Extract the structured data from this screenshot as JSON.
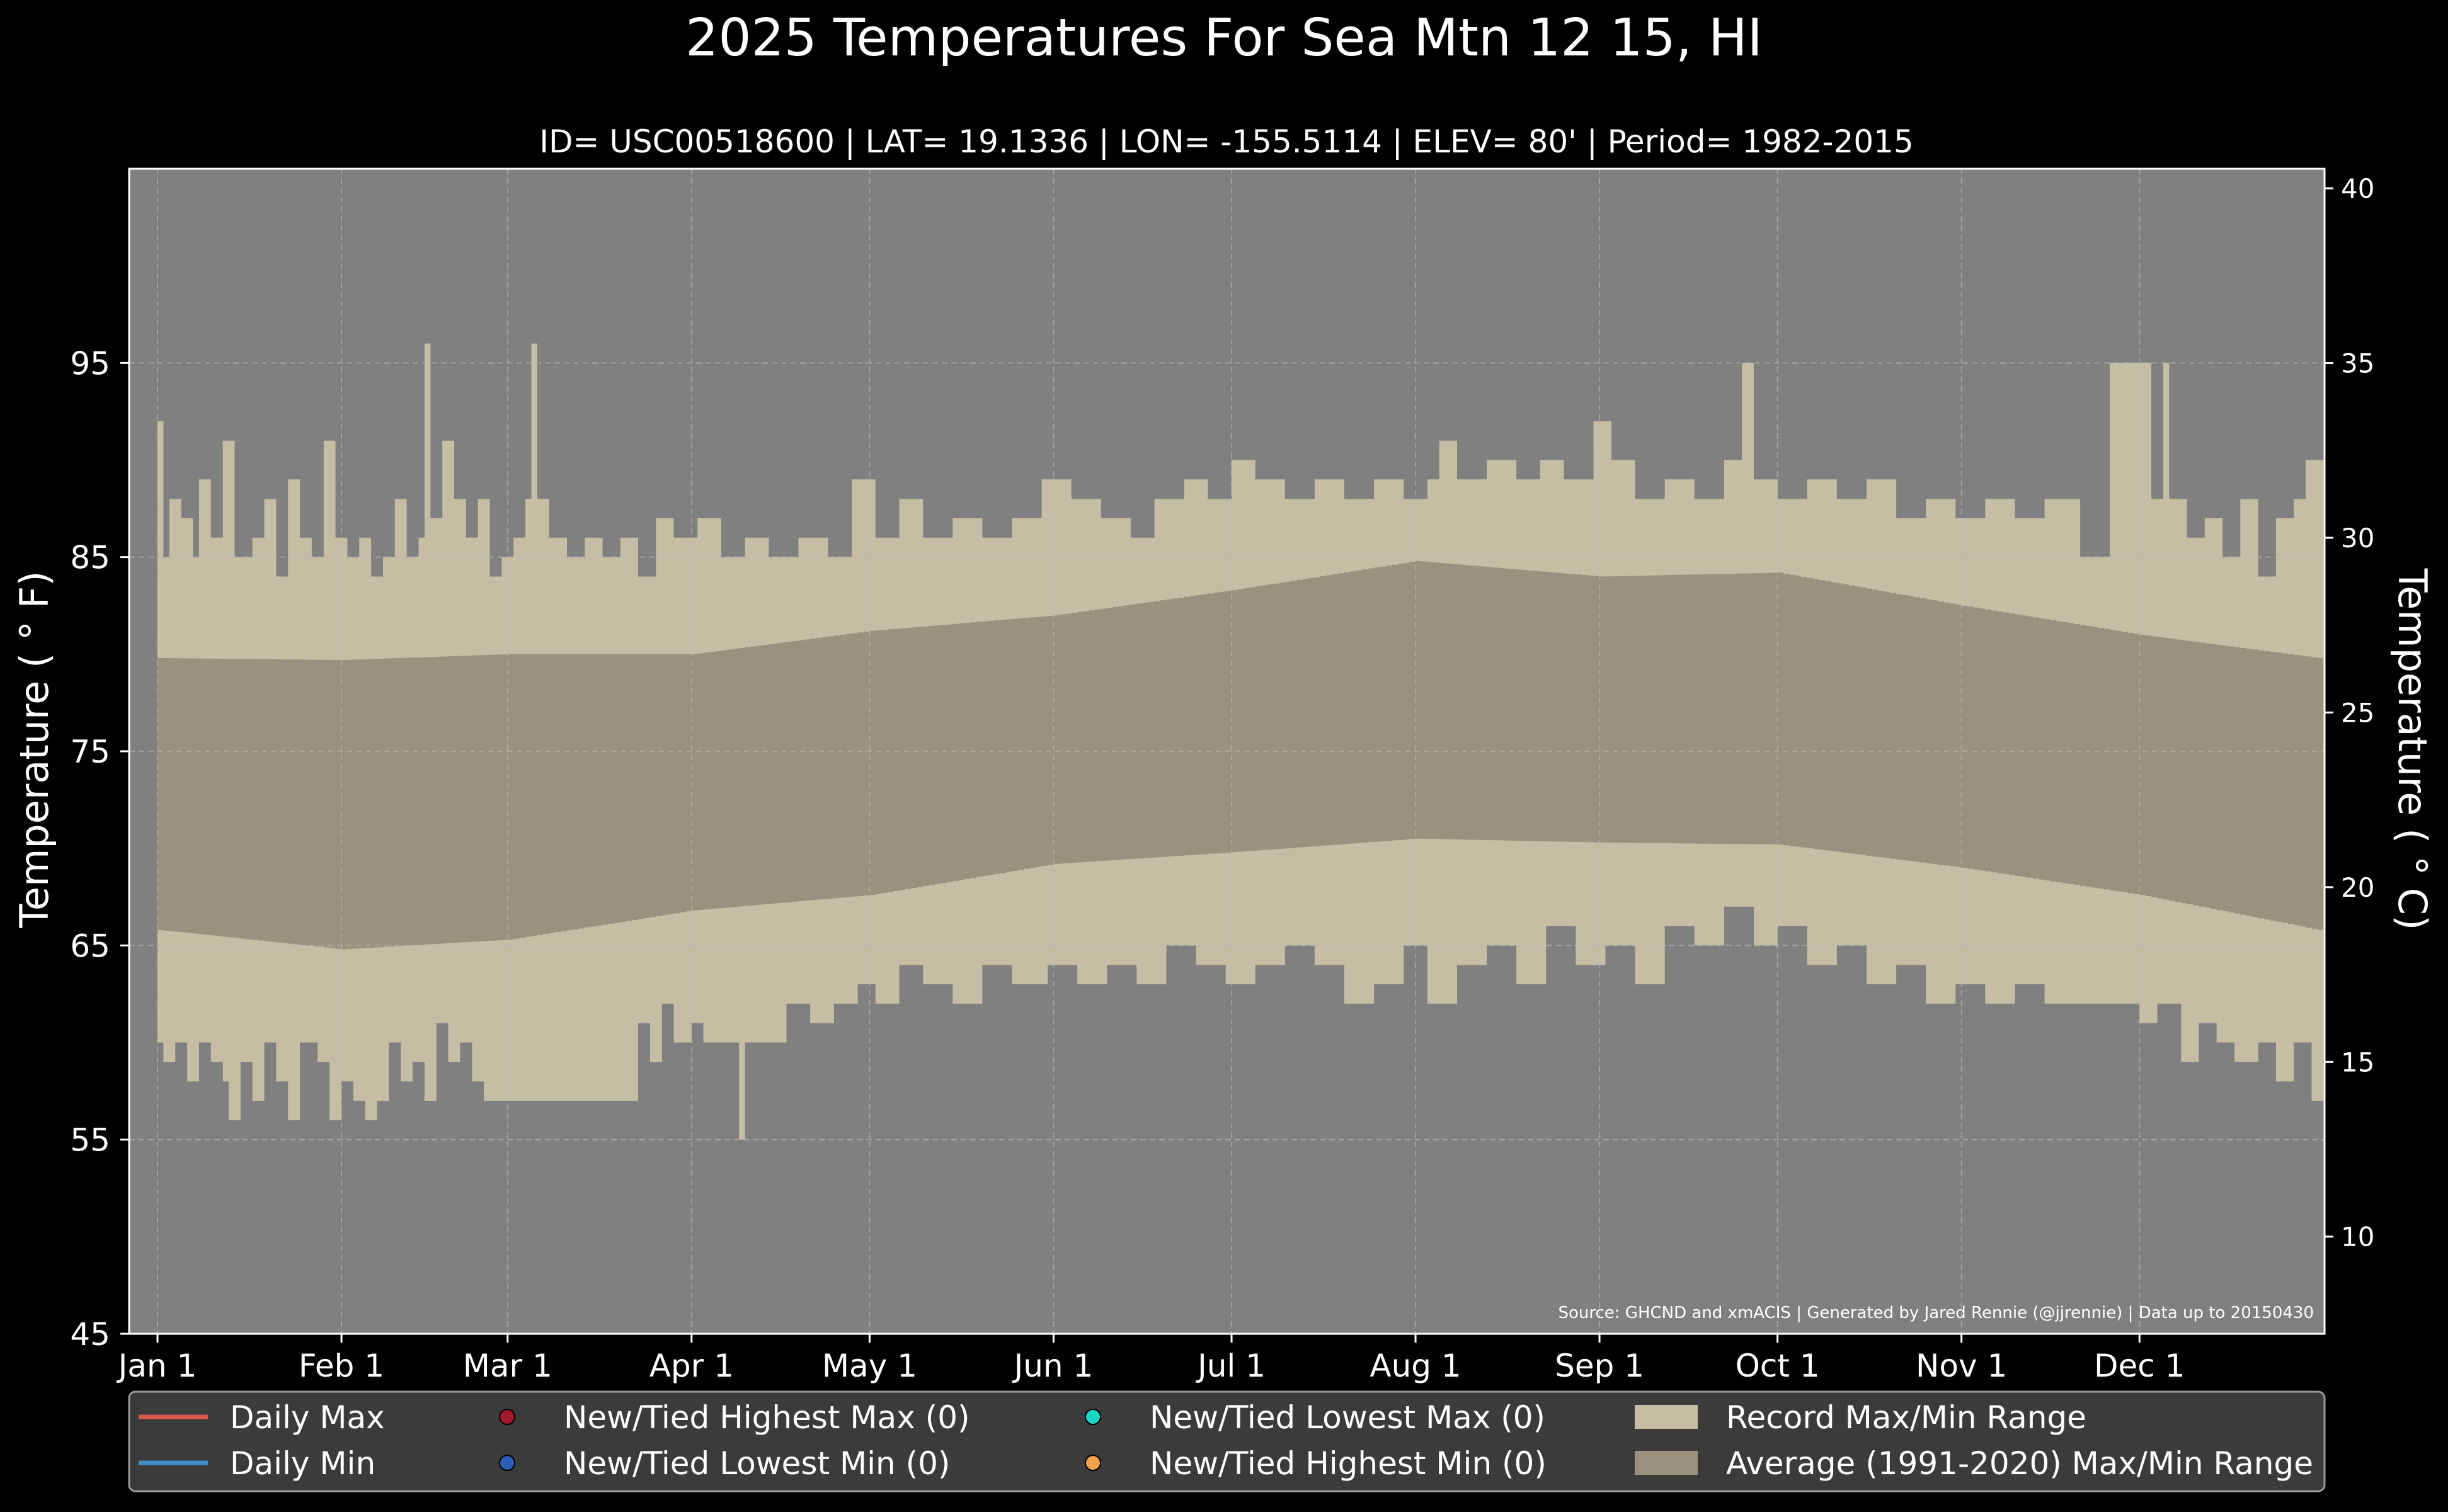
{
  "chart_data": {
    "type": "area",
    "title": "2025 Temperatures For Sea Mtn 12 15, HI",
    "subtitle": "ID= USC00518600 | LAT= 19.1336 | LON= -155.5114 | ELEV= 80' | Period= 1982-2015",
    "ylabel": "Temperature ($^\\circ$F)",
    "ylabel_display": "Temperature ( ° F)",
    "y2label_display": "Temperature ( ° C)",
    "ylim": [
      45,
      105
    ],
    "y2lim": [
      7.22,
      40.56
    ],
    "yticks": [
      45,
      55,
      65,
      75,
      85,
      95
    ],
    "y2ticks": [
      10,
      15,
      20,
      25,
      30,
      35,
      40
    ],
    "xlim_days": [
      0,
      365
    ],
    "month_ticks": [
      {
        "label": "Jan 1",
        "date": "2025-01-01"
      },
      {
        "label": "Feb 1",
        "date": "2025-02-01"
      },
      {
        "label": "Mar 1",
        "date": "2025-03-01"
      },
      {
        "label": "Apr 1",
        "date": "2025-04-01"
      },
      {
        "label": "May 1",
        "date": "2025-05-01"
      },
      {
        "label": "Jun 1",
        "date": "2025-06-01"
      },
      {
        "label": "Jul 1",
        "date": "2025-07-01"
      },
      {
        "label": "Aug 1",
        "date": "2025-08-01"
      },
      {
        "label": "Sep 1",
        "date": "2025-09-01"
      },
      {
        "label": "Oct 1",
        "date": "2025-10-01"
      },
      {
        "label": "Nov 1",
        "date": "2025-11-01"
      },
      {
        "label": "Dec 1",
        "date": "2025-12-01"
      }
    ],
    "grid": true,
    "legend_position": "bottom",
    "source_note": "Source: GHCND and xmACIS | Generated by Jared Rennie (@jjrennie) | Data up to 20150430",
    "series": [
      {
        "name": "Record Max/Min Range",
        "kind": "band",
        "color": "#c5bea5",
        "upper_knots": [
          [
            "2025-01-01",
            92
          ],
          [
            "2025-01-02",
            85
          ],
          [
            "2025-01-03",
            88
          ],
          [
            "2025-01-05",
            87
          ],
          [
            "2025-01-07",
            85
          ],
          [
            "2025-01-08",
            89
          ],
          [
            "2025-01-10",
            86
          ],
          [
            "2025-01-12",
            91
          ],
          [
            "2025-01-14",
            85
          ],
          [
            "2025-01-17",
            86
          ],
          [
            "2025-01-19",
            88
          ],
          [
            "2025-01-21",
            84
          ],
          [
            "2025-01-23",
            89
          ],
          [
            "2025-01-25",
            86
          ],
          [
            "2025-01-27",
            85
          ],
          [
            "2025-01-29",
            91
          ],
          [
            "2025-01-31",
            86
          ],
          [
            "2025-02-02",
            85
          ],
          [
            "2025-02-04",
            86
          ],
          [
            "2025-02-06",
            84
          ],
          [
            "2025-02-08",
            85
          ],
          [
            "2025-02-10",
            88
          ],
          [
            "2025-02-12",
            85
          ],
          [
            "2025-02-14",
            86
          ],
          [
            "2025-02-15",
            96
          ],
          [
            "2025-02-16",
            87
          ],
          [
            "2025-02-18",
            91
          ],
          [
            "2025-02-20",
            88
          ],
          [
            "2025-02-22",
            86
          ],
          [
            "2025-02-24",
            88
          ],
          [
            "2025-02-26",
            84
          ],
          [
            "2025-02-28",
            85
          ],
          [
            "2025-03-02",
            86
          ],
          [
            "2025-03-04",
            88
          ],
          [
            "2025-03-05",
            96
          ],
          [
            "2025-03-06",
            88
          ],
          [
            "2025-03-08",
            86
          ],
          [
            "2025-03-11",
            85
          ],
          [
            "2025-03-14",
            86
          ],
          [
            "2025-03-17",
            85
          ],
          [
            "2025-03-20",
            86
          ],
          [
            "2025-03-23",
            84
          ],
          [
            "2025-03-26",
            87
          ],
          [
            "2025-03-29",
            86
          ],
          [
            "2025-04-02",
            87
          ],
          [
            "2025-04-06",
            85
          ],
          [
            "2025-04-10",
            86
          ],
          [
            "2025-04-14",
            85
          ],
          [
            "2025-04-19",
            86
          ],
          [
            "2025-04-24",
            85
          ],
          [
            "2025-04-28",
            89
          ],
          [
            "2025-05-02",
            86
          ],
          [
            "2025-05-06",
            88
          ],
          [
            "2025-05-10",
            86
          ],
          [
            "2025-05-15",
            87
          ],
          [
            "2025-05-20",
            86
          ],
          [
            "2025-05-25",
            87
          ],
          [
            "2025-05-30",
            89
          ],
          [
            "2025-06-04",
            88
          ],
          [
            "2025-06-09",
            87
          ],
          [
            "2025-06-14",
            86
          ],
          [
            "2025-06-18",
            88
          ],
          [
            "2025-06-23",
            89
          ],
          [
            "2025-06-27",
            88
          ],
          [
            "2025-07-01",
            90
          ],
          [
            "2025-07-05",
            89
          ],
          [
            "2025-07-10",
            88
          ],
          [
            "2025-07-15",
            89
          ],
          [
            "2025-07-20",
            88
          ],
          [
            "2025-07-25",
            89
          ],
          [
            "2025-07-30",
            88
          ],
          [
            "2025-08-03",
            89
          ],
          [
            "2025-08-05",
            91
          ],
          [
            "2025-08-08",
            89
          ],
          [
            "2025-08-13",
            90
          ],
          [
            "2025-08-18",
            89
          ],
          [
            "2025-08-22",
            90
          ],
          [
            "2025-08-26",
            89
          ],
          [
            "2025-08-31",
            92
          ],
          [
            "2025-09-03",
            90
          ],
          [
            "2025-09-07",
            88
          ],
          [
            "2025-09-12",
            89
          ],
          [
            "2025-09-17",
            88
          ],
          [
            "2025-09-22",
            90
          ],
          [
            "2025-09-25",
            95
          ],
          [
            "2025-09-27",
            89
          ],
          [
            "2025-10-01",
            88
          ],
          [
            "2025-10-06",
            89
          ],
          [
            "2025-10-11",
            88
          ],
          [
            "2025-10-16",
            89
          ],
          [
            "2025-10-21",
            87
          ],
          [
            "2025-10-26",
            88
          ],
          [
            "2025-10-31",
            87
          ],
          [
            "2025-11-05",
            88
          ],
          [
            "2025-11-10",
            87
          ],
          [
            "2025-11-15",
            88
          ],
          [
            "2025-11-20",
            88
          ],
          [
            "2025-11-21",
            85
          ],
          [
            "2025-11-25",
            85
          ],
          [
            "2025-11-26",
            95
          ],
          [
            "2025-12-01",
            95
          ],
          [
            "2025-12-03",
            88
          ],
          [
            "2025-12-05",
            95
          ],
          [
            "2025-12-06",
            88
          ],
          [
            "2025-12-09",
            86
          ],
          [
            "2025-12-12",
            87
          ],
          [
            "2025-12-15",
            85
          ],
          [
            "2025-12-18",
            88
          ],
          [
            "2025-12-21",
            84
          ],
          [
            "2025-12-24",
            87
          ],
          [
            "2025-12-27",
            88
          ],
          [
            "2025-12-29",
            90
          ],
          [
            "2025-12-31",
            90
          ]
        ],
        "lower_knots": [
          [
            "2025-01-01",
            60
          ],
          [
            "2025-01-02",
            59
          ],
          [
            "2025-01-04",
            60
          ],
          [
            "2025-01-06",
            58
          ],
          [
            "2025-01-08",
            60
          ],
          [
            "2025-01-10",
            59
          ],
          [
            "2025-01-12",
            58
          ],
          [
            "2025-01-13",
            56
          ],
          [
            "2025-01-15",
            59
          ],
          [
            "2025-01-17",
            57
          ],
          [
            "2025-01-19",
            60
          ],
          [
            "2025-01-21",
            58
          ],
          [
            "2025-01-23",
            56
          ],
          [
            "2025-01-25",
            60
          ],
          [
            "2025-01-28",
            59
          ],
          [
            "2025-01-30",
            56
          ],
          [
            "2025-02-01",
            58
          ],
          [
            "2025-02-03",
            57
          ],
          [
            "2025-02-05",
            56
          ],
          [
            "2025-02-07",
            57
          ],
          [
            "2025-02-09",
            60
          ],
          [
            "2025-02-11",
            58
          ],
          [
            "2025-02-13",
            59
          ],
          [
            "2025-02-15",
            57
          ],
          [
            "2025-02-17",
            61
          ],
          [
            "2025-02-19",
            59
          ],
          [
            "2025-02-21",
            60
          ],
          [
            "2025-02-23",
            58
          ],
          [
            "2025-02-25",
            57
          ],
          [
            "2025-02-28",
            57
          ],
          [
            "2025-03-05",
            57
          ],
          [
            "2025-03-10",
            57
          ],
          [
            "2025-03-15",
            57
          ],
          [
            "2025-03-21",
            57
          ],
          [
            "2025-03-23",
            61
          ],
          [
            "2025-03-25",
            59
          ],
          [
            "2025-03-27",
            62
          ],
          [
            "2025-03-29",
            60
          ],
          [
            "2025-04-01",
            61
          ],
          [
            "2025-04-03",
            60
          ],
          [
            "2025-04-06",
            60
          ],
          [
            "2025-04-08",
            60
          ],
          [
            "2025-04-09",
            55
          ],
          [
            "2025-04-10",
            60
          ],
          [
            "2025-04-13",
            60
          ],
          [
            "2025-04-17",
            62
          ],
          [
            "2025-04-21",
            61
          ],
          [
            "2025-04-25",
            62
          ],
          [
            "2025-04-29",
            63
          ],
          [
            "2025-05-02",
            62
          ],
          [
            "2025-05-06",
            64
          ],
          [
            "2025-05-10",
            63
          ],
          [
            "2025-05-15",
            62
          ],
          [
            "2025-05-20",
            64
          ],
          [
            "2025-05-25",
            63
          ],
          [
            "2025-05-31",
            64
          ],
          [
            "2025-06-05",
            63
          ],
          [
            "2025-06-10",
            64
          ],
          [
            "2025-06-15",
            63
          ],
          [
            "2025-06-20",
            65
          ],
          [
            "2025-06-25",
            64
          ],
          [
            "2025-06-30",
            63
          ],
          [
            "2025-07-05",
            64
          ],
          [
            "2025-07-10",
            65
          ],
          [
            "2025-07-15",
            64
          ],
          [
            "2025-07-20",
            62
          ],
          [
            "2025-07-25",
            63
          ],
          [
            "2025-07-30",
            65
          ],
          [
            "2025-08-03",
            62
          ],
          [
            "2025-08-08",
            64
          ],
          [
            "2025-08-13",
            65
          ],
          [
            "2025-08-18",
            63
          ],
          [
            "2025-08-23",
            66
          ],
          [
            "2025-08-28",
            64
          ],
          [
            "2025-09-02",
            65
          ],
          [
            "2025-09-07",
            63
          ],
          [
            "2025-09-12",
            66
          ],
          [
            "2025-09-17",
            65
          ],
          [
            "2025-09-22",
            67
          ],
          [
            "2025-09-27",
            65
          ],
          [
            "2025-10-01",
            66
          ],
          [
            "2025-10-06",
            64
          ],
          [
            "2025-10-11",
            65
          ],
          [
            "2025-10-16",
            63
          ],
          [
            "2025-10-21",
            64
          ],
          [
            "2025-10-26",
            62
          ],
          [
            "2025-10-31",
            63
          ],
          [
            "2025-11-05",
            62
          ],
          [
            "2025-11-10",
            63
          ],
          [
            "2025-11-15",
            62
          ],
          [
            "2025-11-20",
            62
          ],
          [
            "2025-11-25",
            62
          ],
          [
            "2025-12-01",
            61
          ],
          [
            "2025-12-04",
            62
          ],
          [
            "2025-12-08",
            59
          ],
          [
            "2025-12-11",
            61
          ],
          [
            "2025-12-14",
            60
          ],
          [
            "2025-12-17",
            59
          ],
          [
            "2025-12-21",
            60
          ],
          [
            "2025-12-24",
            58
          ],
          [
            "2025-12-27",
            60
          ],
          [
            "2025-12-30",
            57
          ],
          [
            "2025-12-31",
            57
          ]
        ]
      },
      {
        "name": "Average (1991-2020) Max/Min Range",
        "kind": "band",
        "color": "#9a917e",
        "upper": [
          [
            "2025-01-01",
            79.8
          ],
          [
            "2025-02-01",
            79.7
          ],
          [
            "2025-03-01",
            80.0
          ],
          [
            "2025-04-01",
            80.0
          ],
          [
            "2025-05-01",
            81.2
          ],
          [
            "2025-06-01",
            82.0
          ],
          [
            "2025-07-01",
            83.3
          ],
          [
            "2025-08-01",
            84.8
          ],
          [
            "2025-09-01",
            84.0
          ],
          [
            "2025-10-01",
            84.2
          ],
          [
            "2025-11-01",
            82.5
          ],
          [
            "2025-12-01",
            81.0
          ],
          [
            "2025-12-31",
            79.8
          ]
        ],
        "lower": [
          [
            "2025-01-01",
            65.8
          ],
          [
            "2025-02-01",
            64.8
          ],
          [
            "2025-03-01",
            65.3
          ],
          [
            "2025-04-01",
            66.8
          ],
          [
            "2025-05-01",
            67.6
          ],
          [
            "2025-06-01",
            69.2
          ],
          [
            "2025-07-01",
            69.8
          ],
          [
            "2025-08-01",
            70.5
          ],
          [
            "2025-09-01",
            70.3
          ],
          [
            "2025-10-01",
            70.2
          ],
          [
            "2025-11-01",
            69.0
          ],
          [
            "2025-12-01",
            67.6
          ],
          [
            "2025-12-31",
            65.8
          ]
        ]
      },
      {
        "name": "Daily Max",
        "kind": "line",
        "color": "#d8594a",
        "values": []
      },
      {
        "name": "Daily Min",
        "kind": "line",
        "color": "#3f8ec4",
        "values": []
      }
    ],
    "legend": [
      {
        "label": "Daily Max",
        "kind": "line",
        "color": "#d8594a"
      },
      {
        "label": "Daily Min",
        "kind": "line",
        "color": "#3f8ec4"
      },
      {
        "label": "New/Tied Highest Max (0)",
        "kind": "dot",
        "color": "#a3192c"
      },
      {
        "label": "New/Tied Lowest Min (0)",
        "kind": "dot",
        "color": "#2a5eb7"
      },
      {
        "label": "New/Tied Lowest Max (0)",
        "kind": "dot",
        "color": "#19d6c9"
      },
      {
        "label": "New/Tied Highest Min (0)",
        "kind": "dot",
        "color": "#f2a24c"
      },
      {
        "label": "Record Max/Min Range",
        "kind": "patch",
        "color": "#c5bea5"
      },
      {
        "label": "Average (1991-2020) Max/Min Range",
        "kind": "patch",
        "color": "#9a917e"
      }
    ],
    "colors": {
      "background": "#000000",
      "plot_background": "#808080",
      "text": "#ffffff",
      "grid": "#b8b8b8",
      "legend_background": "#3b3b3b",
      "legend_border": "#9a9a9a"
    }
  }
}
